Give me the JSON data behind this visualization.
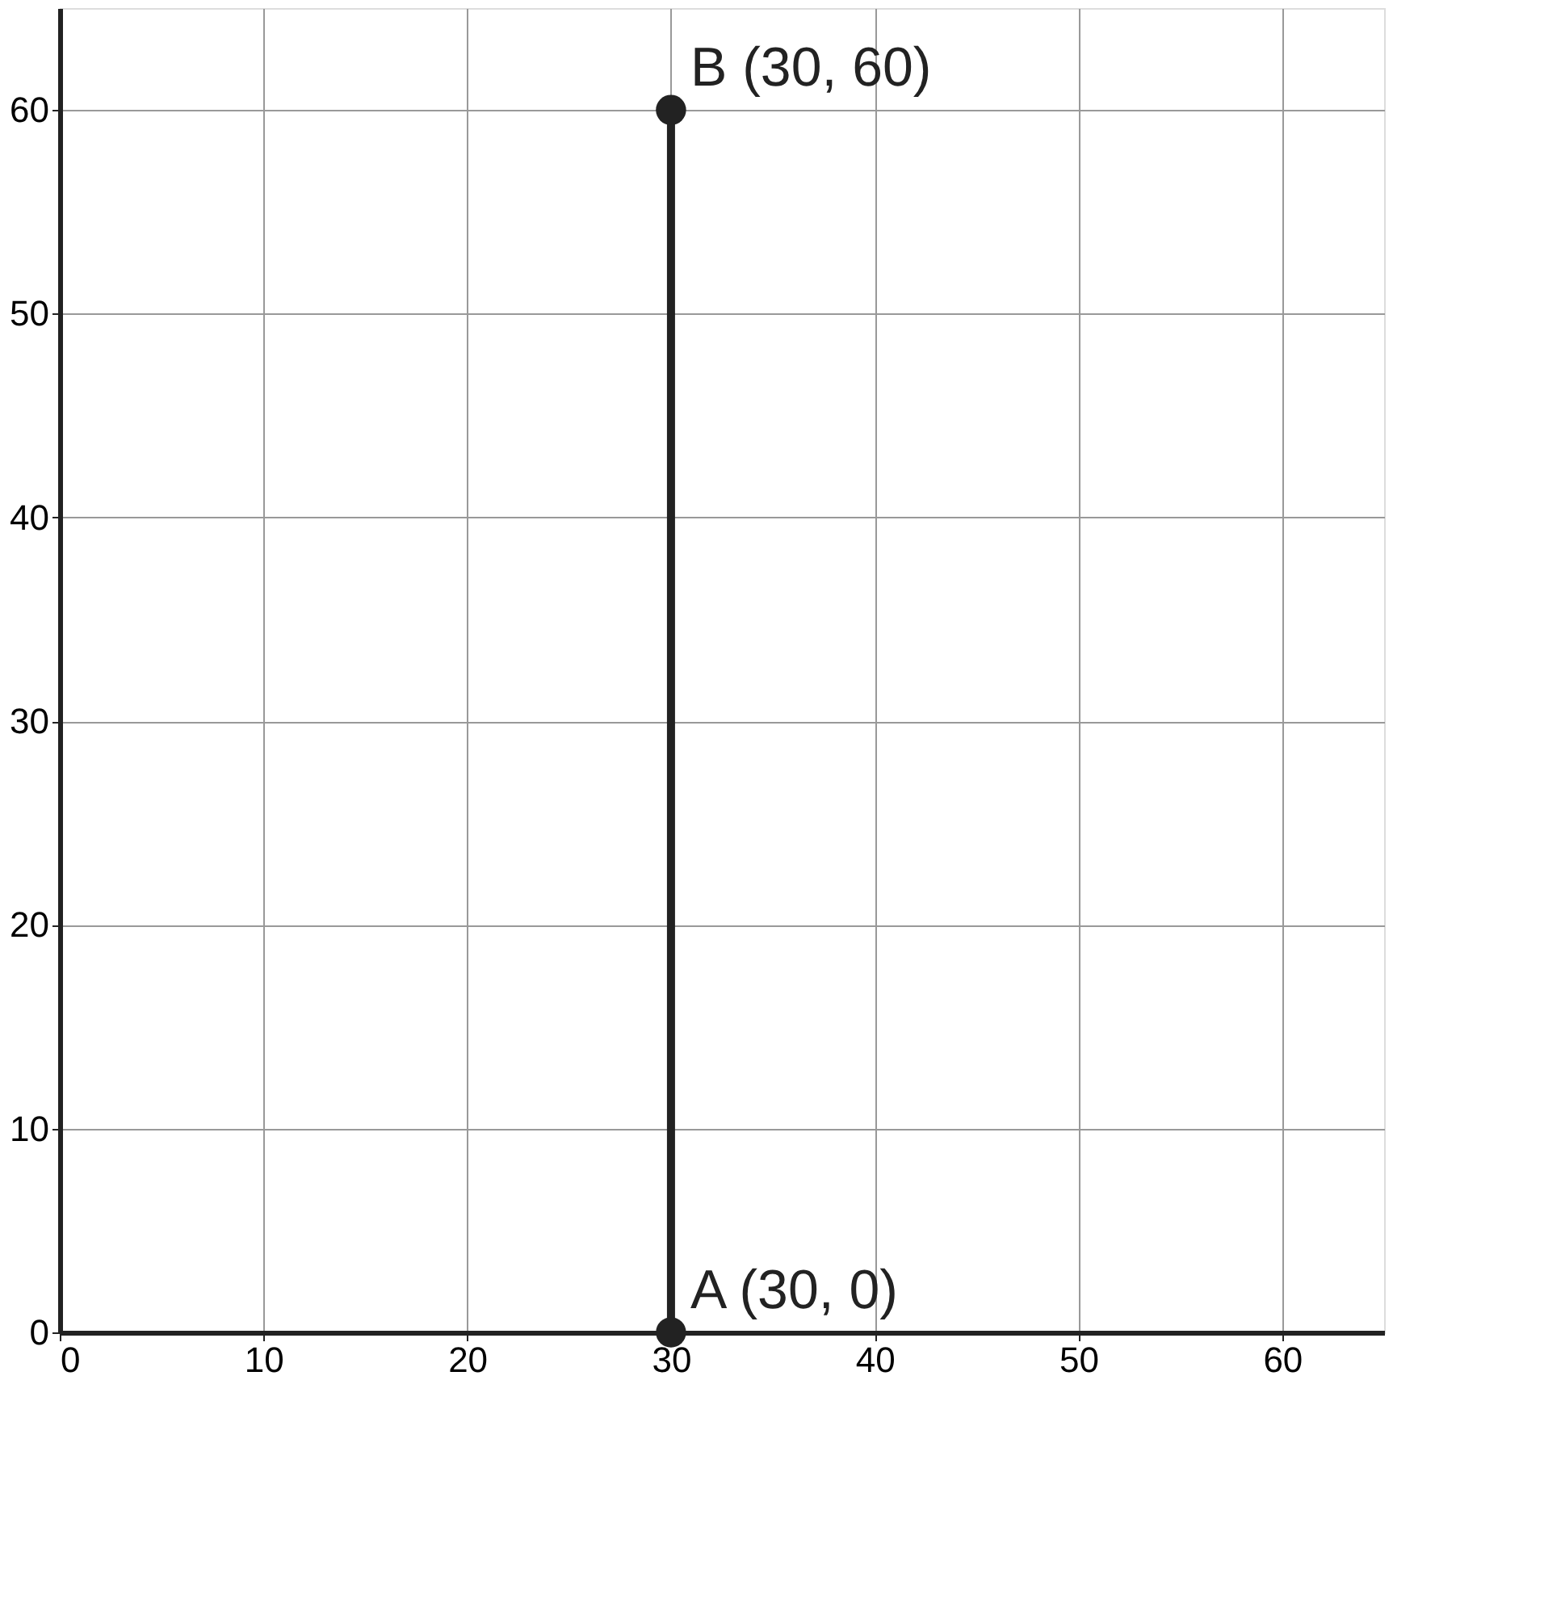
{
  "chart_data": {
    "type": "line",
    "series": [
      {
        "x": [
          30,
          30
        ],
        "values": [
          0,
          60
        ],
        "color": "#222222"
      }
    ],
    "xlim": [
      0,
      65
    ],
    "ylim": [
      0,
      65
    ],
    "xticks": [
      0,
      10,
      20,
      30,
      40,
      50,
      60
    ],
    "yticks": [
      0,
      10,
      20,
      30,
      40,
      50,
      60
    ],
    "grid": true,
    "marker": "circle",
    "line_style": "solid",
    "annotations": [
      {
        "text": "A (30, 0)",
        "x": 30,
        "y": 0
      },
      {
        "text": "B (30, 60)",
        "x": 30,
        "y": 60
      }
    ]
  }
}
